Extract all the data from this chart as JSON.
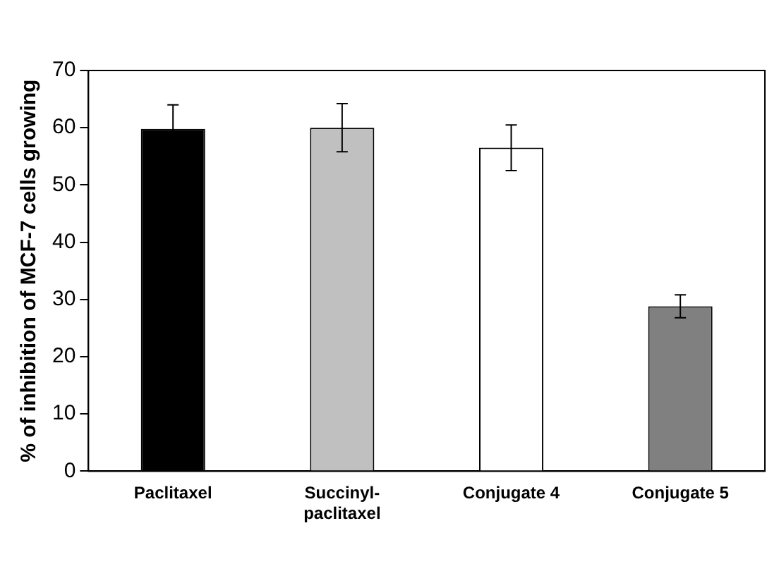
{
  "chart_data": {
    "type": "bar",
    "ylabel": "% of inhibition of MCF-7 cells growing",
    "categories": [
      "Paclitaxel",
      "Succinyl-paclitaxel",
      "Conjugate 4",
      "Conjugate 5"
    ],
    "values": [
      59.8,
      60,
      56.5,
      28.8
    ],
    "colors": [
      "#000000",
      "#c0c0c0",
      "#ffffff",
      "#808080"
    ],
    "errors": [
      4.2,
      4.2,
      4,
      2
    ],
    "ylim": [
      0,
      70
    ],
    "yticks": [
      0,
      10,
      20,
      30,
      40,
      50,
      60,
      70
    ],
    "grid": false,
    "legend": false
  }
}
